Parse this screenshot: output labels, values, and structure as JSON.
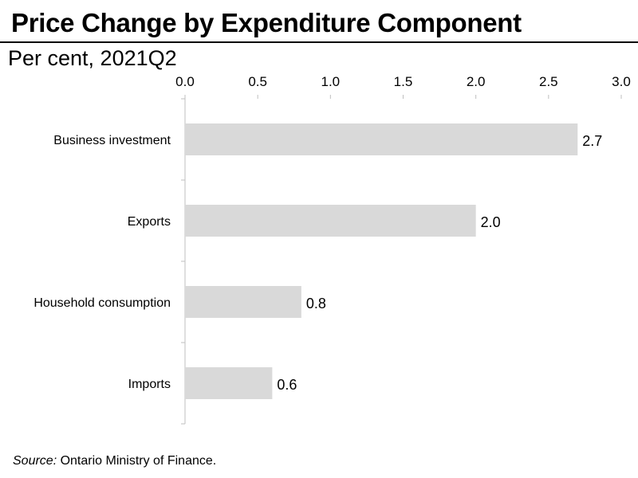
{
  "header": {
    "title": "Price Change by Expenditure Component",
    "subtitle": "Per cent, 2021Q2"
  },
  "footer": {
    "source_label": "Source:",
    "source_text": " Ontario Ministry of Finance."
  },
  "colors": {
    "bar": "#d9d9d9",
    "axis": "#bfbfbf",
    "text": "#000000"
  },
  "chart_data": {
    "type": "bar",
    "orientation": "horizontal",
    "categories": [
      "Business investment",
      "Exports",
      "Household consumption",
      "Imports"
    ],
    "values": [
      2.7,
      2.0,
      0.8,
      0.6
    ],
    "data_labels": [
      "2.7",
      "2.0",
      "0.8",
      "0.6"
    ],
    "title": "Price Change by Expenditure Component",
    "subtitle": "Per cent, 2021Q2",
    "xlim": [
      0,
      3.0
    ],
    "x_ticks": [
      "0.0",
      "0.5",
      "1.0",
      "1.5",
      "2.0",
      "2.5",
      "3.0"
    ],
    "x_axis_position": "top",
    "grid": false,
    "legend": "none"
  }
}
